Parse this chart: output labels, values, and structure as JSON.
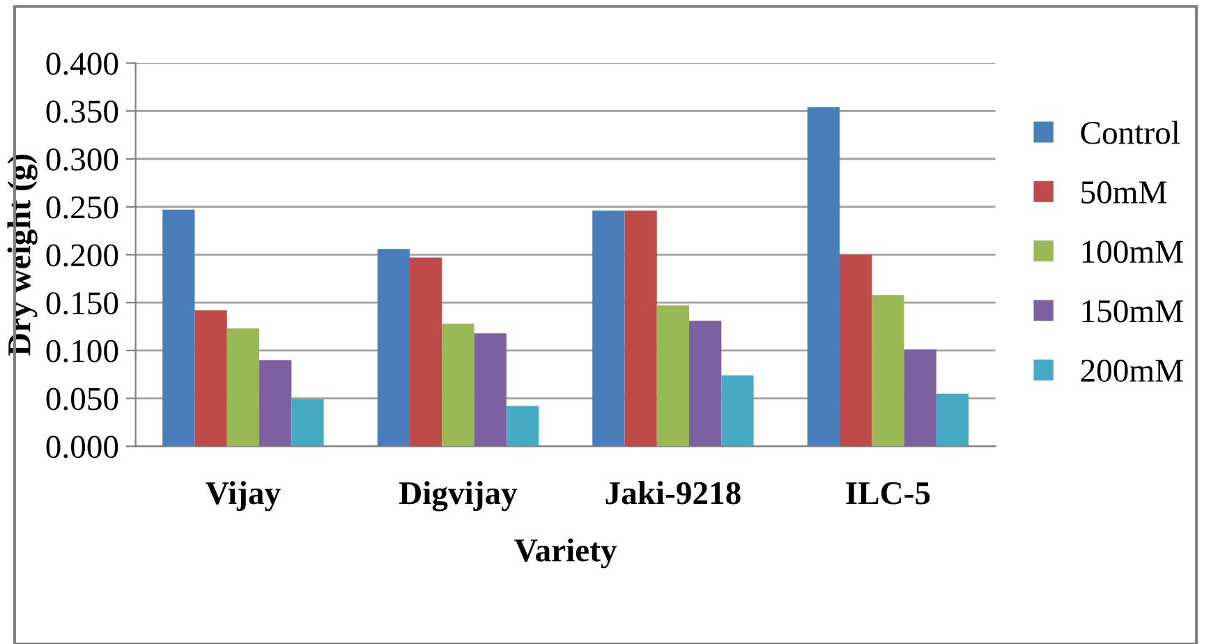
{
  "chart_data": {
    "type": "bar",
    "xlabel": "Variety",
    "ylabel": "Dry weight (g)",
    "categories": [
      "Vijay",
      "Digvijay",
      "Jaki-9218",
      "ILC-5"
    ],
    "series": [
      {
        "name": "Control",
        "color": "#4a7ebb",
        "values": [
          0.247,
          0.206,
          0.246,
          0.354
        ]
      },
      {
        "name": "50mM",
        "color": "#be4b48",
        "values": [
          0.142,
          0.197,
          0.246,
          0.2
        ]
      },
      {
        "name": "100mM",
        "color": "#98b954",
        "values": [
          0.123,
          0.128,
          0.147,
          0.158
        ]
      },
      {
        "name": "150mM",
        "color": "#7d60a0",
        "values": [
          0.09,
          0.118,
          0.131,
          0.101
        ]
      },
      {
        "name": "200mM",
        "color": "#46aac5",
        "values": [
          0.049,
          0.042,
          0.074,
          0.055
        ]
      }
    ],
    "ylim": [
      0,
      0.4
    ],
    "yticks": [
      {
        "value": 0,
        "label": "0.000"
      },
      {
        "value": 0.05,
        "label": "0.050"
      },
      {
        "value": 0.1,
        "label": "0.100"
      },
      {
        "value": 0.15,
        "label": "0.150"
      },
      {
        "value": 0.2,
        "label": "0.200"
      },
      {
        "value": 0.25,
        "label": "0.250"
      },
      {
        "value": 0.3,
        "label": "0.300"
      },
      {
        "value": 0.35,
        "label": "0.350"
      },
      {
        "value": 0.4,
        "label": "0.400"
      }
    ],
    "grid": "y",
    "legend": "right"
  }
}
